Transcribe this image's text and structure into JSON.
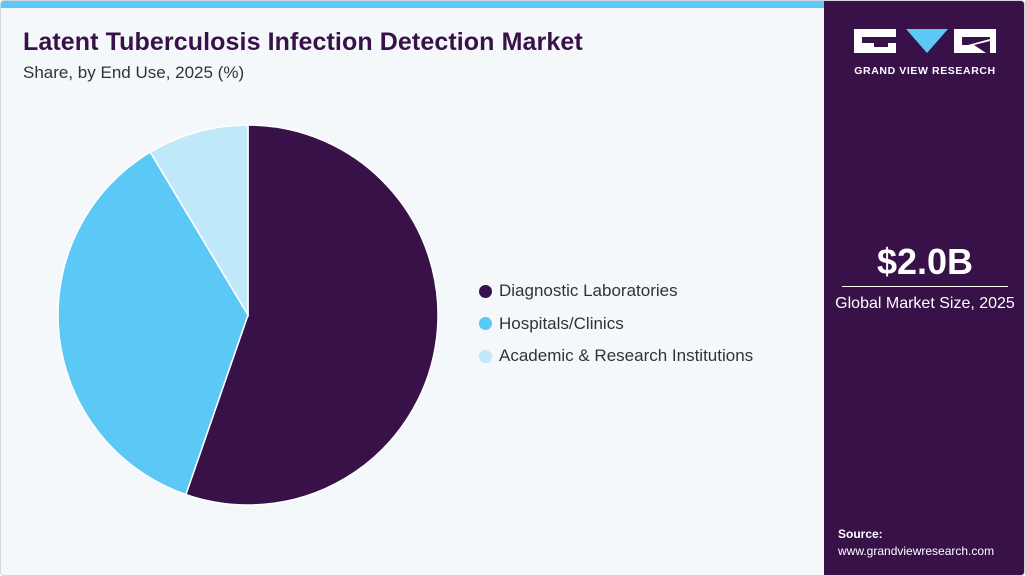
{
  "header": {
    "title": "Latent Tuberculosis Infection Detection Market",
    "subtitle": "Share, by End Use, 2025 (%)"
  },
  "chart_data": {
    "type": "pie",
    "title": "Latent Tuberculosis Infection Detection Market",
    "subtitle": "Share, by End Use, 2025 (%)",
    "categories": [
      "Diagnostic Laboratories",
      "Hospitals/Clinics",
      "Academic & Research Institutions"
    ],
    "values": [
      55.3,
      36.1,
      8.6
    ],
    "colors": [
      "#371147",
      "#5bc8f5",
      "#bfe9f9"
    ],
    "legend_position": "right"
  },
  "sidebar": {
    "brand": "GRAND VIEW RESEARCH",
    "market_value": "$2.0B",
    "market_label": "Global Market Size, 2025",
    "source_label": "Source:",
    "source_url": "www.grandviewresearch.com"
  },
  "colors": {
    "accent": "#5bc8f5",
    "brand": "#371147",
    "background": "#f4f8fb"
  }
}
